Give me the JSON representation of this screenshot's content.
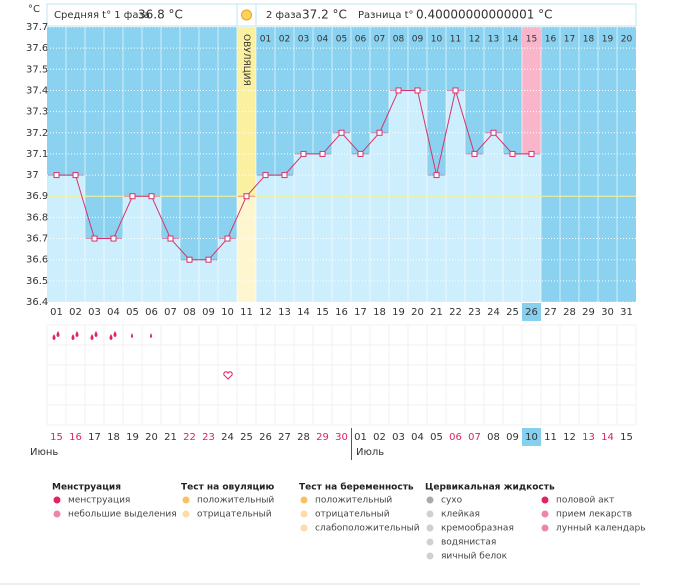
{
  "header": {
    "unit": "°C",
    "phase1_label": "Средняя t° 1 фаза",
    "phase1_value": "36.8 °C",
    "phase2_label": "2 фаза",
    "phase2_value": "37.2 °C",
    "diff_label": "Разница t°",
    "diff_value": "0.40000000000001 °C"
  },
  "chart_data": {
    "type": "line",
    "color": "#d6336c",
    "categories": [
      "01",
      "02",
      "03",
      "04",
      "05",
      "06",
      "07",
      "08",
      "09",
      "10",
      "11",
      "12",
      "13",
      "14",
      "15",
      "16",
      "17",
      "18",
      "19",
      "20",
      "21",
      "22",
      "23",
      "24",
      "25",
      "26",
      "27",
      "28",
      "29",
      "30",
      "31"
    ],
    "values": [
      37.0,
      37.0,
      36.7,
      36.7,
      36.9,
      36.9,
      36.7,
      36.6,
      36.6,
      36.7,
      36.9,
      37.0,
      37.0,
      37.1,
      37.1,
      37.2,
      37.1,
      37.2,
      37.4,
      37.4,
      37.0,
      37.4,
      37.1,
      37.2,
      37.1,
      37.1,
      null,
      null,
      null,
      null,
      null
    ],
    "ylim": [
      36.4,
      37.7
    ],
    "yticks": [
      36.4,
      36.5,
      36.6,
      36.7,
      36.8,
      36.9,
      37,
      37.1,
      37.2,
      37.3,
      37.4,
      37.5,
      37.6,
      37.7
    ],
    "grid": true,
    "coverline": 36.9,
    "ovulation_day": "11",
    "ovulation_label": "ОВУЛЯЦИЯ",
    "current_day": "26",
    "phase2_days": [
      "01",
      "02",
      "03",
      "04",
      "05",
      "06",
      "07",
      "08",
      "09",
      "10",
      "11",
      "12",
      "13",
      "14",
      "15",
      "16",
      "17",
      "18",
      "19",
      "20"
    ],
    "dates": [
      "15",
      "16",
      "17",
      "18",
      "19",
      "20",
      "21",
      "22",
      "23",
      "24",
      "25",
      "26",
      "27",
      "28",
      "29",
      "30",
      "01",
      "02",
      "03",
      "04",
      "05",
      "06",
      "07",
      "08",
      "09",
      "10",
      "11",
      "12",
      "13",
      "14",
      "15"
    ],
    "weekends": [
      0,
      1,
      7,
      8,
      14,
      15,
      21,
      22,
      28,
      29
    ],
    "weekend_color": "#e0245e"
  },
  "months": [
    "Июнь",
    "Июль"
  ],
  "legend": [
    {
      "title": "Менструация",
      "items": [
        "менструация",
        "небольшие выделения"
      ]
    },
    {
      "title": "Тест на овуляцию",
      "items": [
        "положительный",
        "отрицательный"
      ]
    },
    {
      "title": "Тест на беременность",
      "items": [
        "положительный",
        "отрицательный",
        "слабоположительный"
      ]
    },
    {
      "title": "Цервикальная жидкость",
      "items": [
        "сухо",
        "клейкая",
        "кремообразная",
        "водянистая",
        "яичный белок"
      ]
    },
    {
      "items": [
        "половой акт",
        "прием лекарств",
        "лунный календарь"
      ]
    }
  ]
}
